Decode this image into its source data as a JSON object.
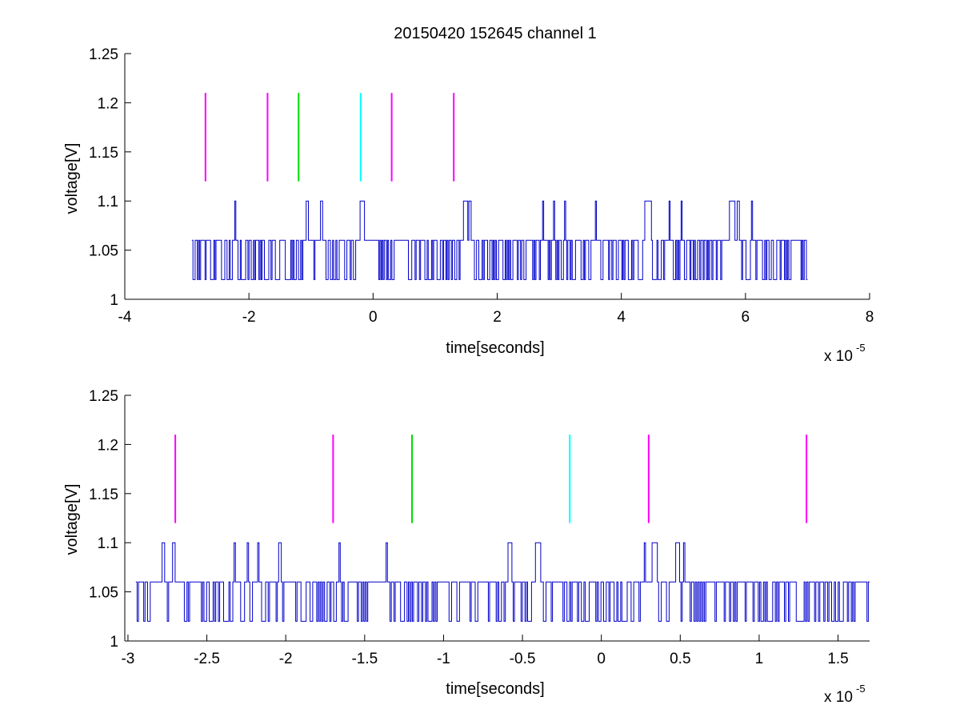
{
  "figure": {
    "title": "20150420 152645 channel 1",
    "signal_color": "#0000cc",
    "marker_colors": {
      "magenta": "#ff00ff",
      "green": "#00dd00",
      "cyan": "#00ffff"
    }
  },
  "chart_data": [
    {
      "type": "line",
      "title": "20150420 152645 channel 1",
      "xlabel": "time[seconds]",
      "ylabel": "voltage[V]",
      "x_multiplier_label": "x 10",
      "x_multiplier_exponent": "-5",
      "xlim": [
        -4,
        8
      ],
      "ylim": [
        1,
        1.25
      ],
      "xticks": [
        "-4",
        "-2",
        "0",
        "2",
        "4",
        "6",
        "8"
      ],
      "xtick_values": [
        -4,
        -2,
        0,
        2,
        4,
        6,
        8
      ],
      "yticks": [
        "1",
        "1.05",
        "1.1",
        "1.15",
        "1.2",
        "1.25"
      ],
      "ytick_values": [
        1,
        1.05,
        1.1,
        1.15,
        1.2,
        1.25
      ],
      "grid": false,
      "series": [
        {
          "style": "step",
          "color": "#0000cc",
          "x_range": [
            -2.92,
            7.0
          ],
          "levels": [
            1.02,
            1.06,
            1.1
          ],
          "baseline": 1.06,
          "summary": "digitized noise toggling between 1.02 V and 1.06 V with spikes to 1.10 V"
        }
      ],
      "markers": [
        {
          "x": -2.7,
          "y_from": 1.12,
          "y_to": 1.21,
          "color": "magenta"
        },
        {
          "x": -1.7,
          "y_from": 1.12,
          "y_to": 1.21,
          "color": "magenta"
        },
        {
          "x": -1.2,
          "y_from": 1.12,
          "y_to": 1.21,
          "color": "green"
        },
        {
          "x": -0.2,
          "y_from": 1.12,
          "y_to": 1.21,
          "color": "cyan"
        },
        {
          "x": 0.3,
          "y_from": 1.12,
          "y_to": 1.21,
          "color": "magenta"
        },
        {
          "x": 1.3,
          "y_from": 1.12,
          "y_to": 1.21,
          "color": "magenta"
        }
      ]
    },
    {
      "type": "line",
      "title": "",
      "xlabel": "time[seconds]",
      "ylabel": "voltage[V]",
      "x_multiplier_label": "x 10",
      "x_multiplier_exponent": "-5",
      "xlim": [
        -3.02,
        1.7
      ],
      "ylim": [
        1,
        1.25
      ],
      "xticks": [
        "-3",
        "-2.5",
        "-2",
        "-1.5",
        "-1",
        "-0.5",
        "0",
        "0.5",
        "1",
        "1.5"
      ],
      "xtick_values": [
        -3,
        -2.5,
        -2,
        -1.5,
        -1,
        -0.5,
        0,
        0.5,
        1,
        1.5
      ],
      "yticks": [
        "1",
        "1.05",
        "1.1",
        "1.15",
        "1.2",
        "1.25"
      ],
      "ytick_values": [
        1,
        1.05,
        1.1,
        1.15,
        1.2,
        1.25
      ],
      "grid": false,
      "series": [
        {
          "style": "step",
          "color": "#0000cc",
          "x_range": [
            -2.95,
            1.7
          ],
          "levels": [
            1.02,
            1.06,
            1.1
          ],
          "baseline": 1.06,
          "summary": "zoomed view of the same signal"
        }
      ],
      "markers": [
        {
          "x": -2.7,
          "y_from": 1.12,
          "y_to": 1.21,
          "color": "magenta"
        },
        {
          "x": -1.7,
          "y_from": 1.12,
          "y_to": 1.21,
          "color": "magenta"
        },
        {
          "x": -1.2,
          "y_from": 1.12,
          "y_to": 1.21,
          "color": "green"
        },
        {
          "x": -0.2,
          "y_from": 1.12,
          "y_to": 1.21,
          "color": "cyan"
        },
        {
          "x": 0.3,
          "y_from": 1.12,
          "y_to": 1.21,
          "color": "magenta"
        },
        {
          "x": 1.3,
          "y_from": 1.12,
          "y_to": 1.21,
          "color": "magenta"
        }
      ]
    }
  ]
}
